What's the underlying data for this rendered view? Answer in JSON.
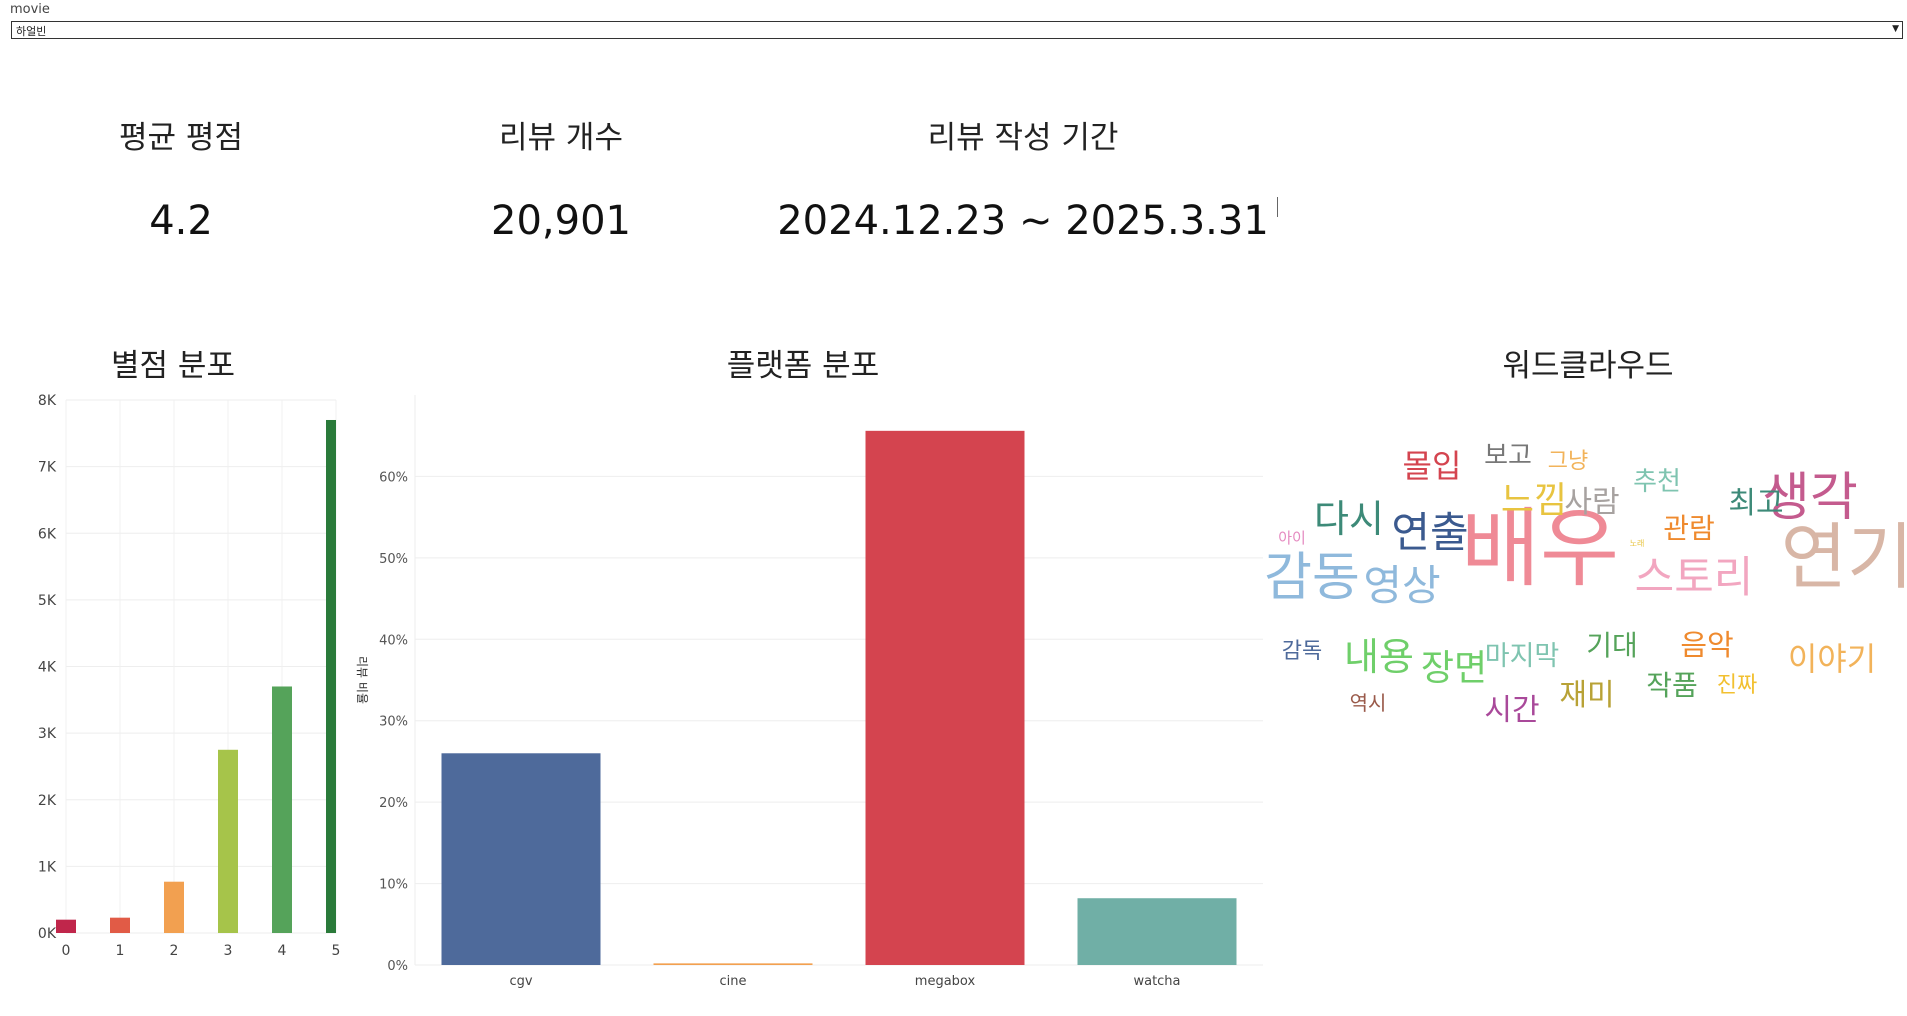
{
  "filter": {
    "label": "movie",
    "value": "하얼빈",
    "arrow": "▼"
  },
  "kpis": {
    "avg_rating": {
      "title": "평균 평점",
      "value": "4.2"
    },
    "review_count": {
      "title": "리뷰 개수",
      "value": "20,901"
    },
    "period": {
      "title": "리뷰 작성 기간",
      "value": "2024.12.23 ~ 2025.3.31"
    }
  },
  "sections": {
    "star_dist": "별점 분포",
    "platform_dist": "플랫폼 분포",
    "wordcloud": "워드클라우드"
  },
  "chart_data": [
    {
      "type": "bar",
      "title": "별점 분포",
      "categories": [
        "0",
        "1",
        "2",
        "3",
        "4",
        "5"
      ],
      "values": [
        200,
        230,
        770,
        2750,
        3700,
        7700
      ],
      "colors": [
        "#c0264b",
        "#e15b46",
        "#f2a050",
        "#a6c44a",
        "#55a35a",
        "#2a7a3a"
      ],
      "ylim": [
        0,
        8000
      ],
      "yticks": [
        "0K",
        "1K",
        "2K",
        "3K",
        "4K",
        "5K",
        "6K",
        "7K",
        "8K"
      ],
      "grid": true
    },
    {
      "type": "bar",
      "title": "플랫폼 분포",
      "categories": [
        "cgv",
        "cine",
        "megabox",
        "watcha"
      ],
      "values": [
        26.0,
        0.2,
        65.6,
        8.2
      ],
      "colors": [
        "#4e6a9b",
        "#f2a050",
        "#d4444f",
        "#70afa6"
      ],
      "ylabel": "리뷰 비율",
      "ylim": [
        0,
        70
      ],
      "yticks": [
        "0%",
        "10%",
        "20%",
        "30%",
        "40%",
        "50%",
        "60%"
      ],
      "grid": true
    }
  ],
  "wordcloud": {
    "words": [
      {
        "text": "배우",
        "color": "#ef8a96"
      },
      {
        "text": "연기",
        "color": "#d8b6a6"
      },
      {
        "text": "감동",
        "color": "#8fb9dc"
      },
      {
        "text": "스토리",
        "color": "#f2a6c0"
      },
      {
        "text": "생각",
        "color": "#c45b8e"
      },
      {
        "text": "영상",
        "color": "#8fb9dc"
      },
      {
        "text": "연출",
        "color": "#3b5a8f"
      },
      {
        "text": "다시",
        "color": "#3d8a78"
      },
      {
        "text": "몰입",
        "color": "#d4444f"
      },
      {
        "text": "느낌",
        "color": "#e8c440"
      },
      {
        "text": "사람",
        "color": "#a7a2a0"
      },
      {
        "text": "보고",
        "color": "#777777"
      },
      {
        "text": "그냥",
        "color": "#f2b35a"
      },
      {
        "text": "추천",
        "color": "#7fc4b0"
      },
      {
        "text": "관람",
        "color": "#ef8a2e"
      },
      {
        "text": "최고",
        "color": "#3d8a78"
      },
      {
        "text": "아이",
        "color": "#e58ac0"
      },
      {
        "text": "노래",
        "color": "#e8c440"
      },
      {
        "text": "감독",
        "color": "#4e6a9b"
      },
      {
        "text": "내용",
        "color": "#6fcf6a"
      },
      {
        "text": "장면",
        "color": "#6fcf6a"
      },
      {
        "text": "마지막",
        "color": "#7fc4b0"
      },
      {
        "text": "기대",
        "color": "#55a35a"
      },
      {
        "text": "음악",
        "color": "#ef8a2e"
      },
      {
        "text": "이야기",
        "color": "#f2b35a"
      },
      {
        "text": "재미",
        "color": "#b8a236"
      },
      {
        "text": "작품",
        "color": "#55a35a"
      },
      {
        "text": "진짜",
        "color": "#f2c030"
      },
      {
        "text": "역시",
        "color": "#9a5a4a"
      },
      {
        "text": "시간",
        "color": "#a9499a"
      }
    ]
  }
}
